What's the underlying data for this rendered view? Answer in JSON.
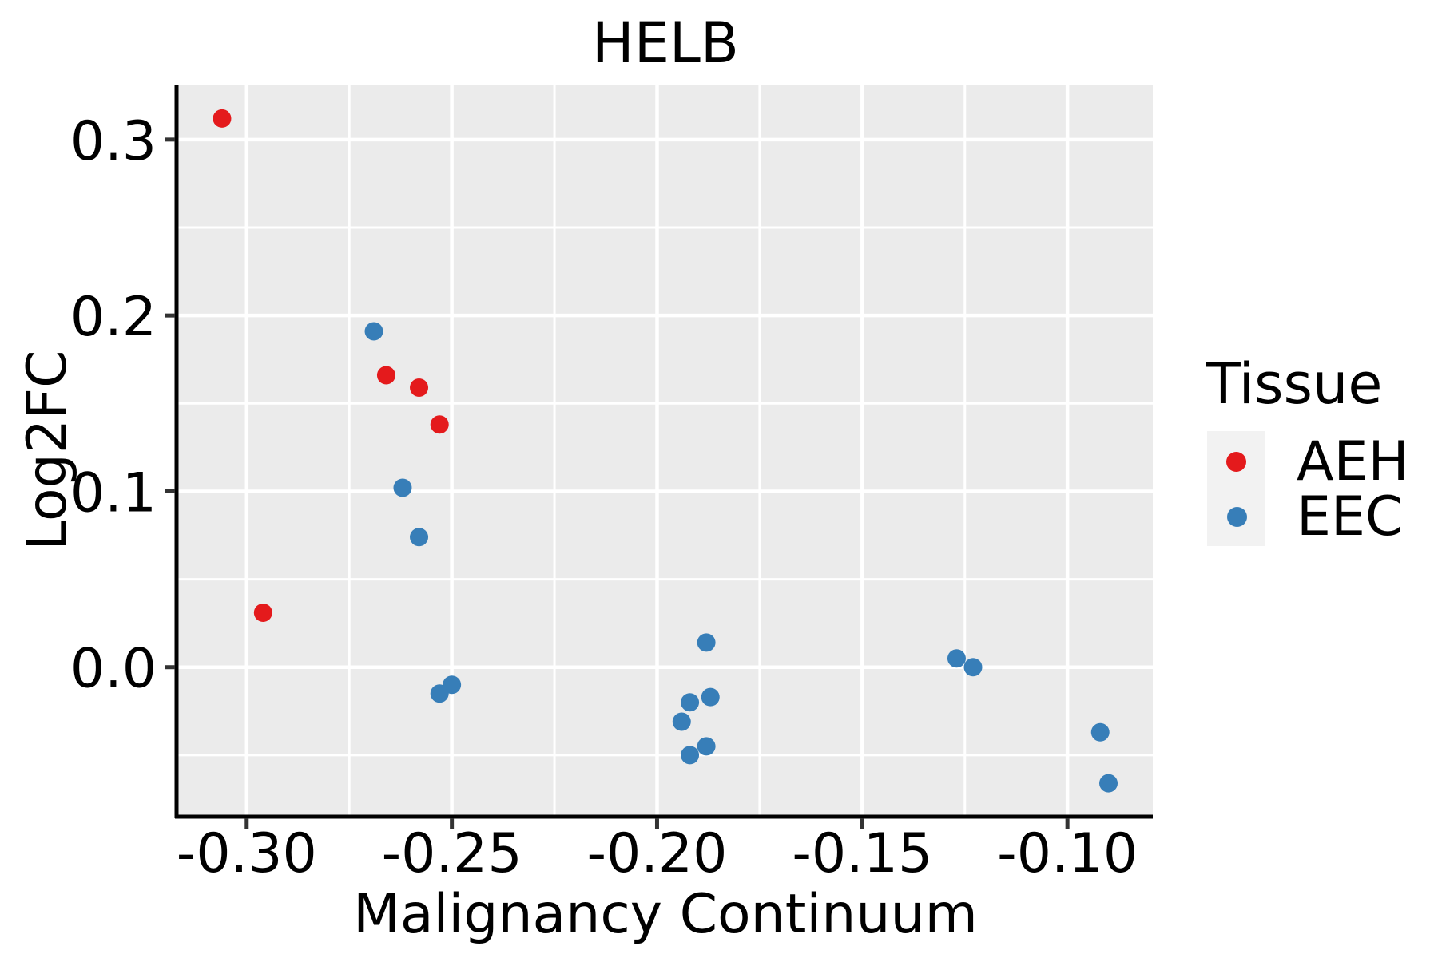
{
  "title": "HELB",
  "chart_data": {
    "type": "scatter",
    "title": "HELB",
    "xlabel": "Malignancy Continuum",
    "ylabel": "Log2FC",
    "xlim": [
      -0.3167,
      -0.0792
    ],
    "ylim": [
      -0.0841,
      0.3308
    ],
    "grid": true,
    "legend_position": "right-outside",
    "x_ticks": {
      "values": [
        -0.3,
        -0.25,
        -0.2,
        -0.15,
        -0.1
      ],
      "labels": [
        "-0.30",
        "-0.25",
        "-0.20",
        "-0.15",
        "-0.10"
      ],
      "minor": [
        -0.275,
        -0.225,
        -0.175,
        -0.125
      ]
    },
    "y_ticks": {
      "values": [
        0.0,
        0.1,
        0.2,
        0.3
      ],
      "labels": [
        "0.0",
        "0.1",
        "0.2",
        "0.3"
      ],
      "minor": [
        -0.05,
        0.05,
        0.15,
        0.25
      ]
    },
    "series": [
      {
        "name": "AEH",
        "color": "#E41A1C",
        "points": [
          [
            -0.306,
            0.312
          ],
          [
            -0.296,
            0.031
          ],
          [
            -0.266,
            0.166
          ],
          [
            -0.258,
            0.159
          ],
          [
            -0.253,
            0.138
          ]
        ]
      },
      {
        "name": "EEC",
        "color": "#377EB8",
        "points": [
          [
            -0.269,
            0.191
          ],
          [
            -0.262,
            0.102
          ],
          [
            -0.258,
            0.074
          ],
          [
            -0.253,
            -0.015
          ],
          [
            -0.25,
            -0.01
          ],
          [
            -0.194,
            -0.031
          ],
          [
            -0.192,
            -0.02
          ],
          [
            -0.192,
            -0.05
          ],
          [
            -0.188,
            0.014
          ],
          [
            -0.188,
            -0.045
          ],
          [
            -0.187,
            -0.017
          ],
          [
            -0.127,
            0.005
          ],
          [
            -0.123,
            0.0
          ],
          [
            -0.092,
            -0.037
          ],
          [
            -0.09,
            -0.066
          ]
        ]
      }
    ]
  },
  "legend": {
    "title": "Tissue",
    "items": [
      {
        "label": "AEH",
        "color": "#E41A1C"
      },
      {
        "label": "EEC",
        "color": "#377EB8"
      }
    ]
  },
  "colors": {
    "figure_bg": "#FFFFFF",
    "panel_bg": "#EBEBEB",
    "grid": "#FFFFFF",
    "axis_line": "#000000",
    "tick_mark": "#333333",
    "text": "#000000",
    "legend_key_bg": "#F2F2F2"
  }
}
